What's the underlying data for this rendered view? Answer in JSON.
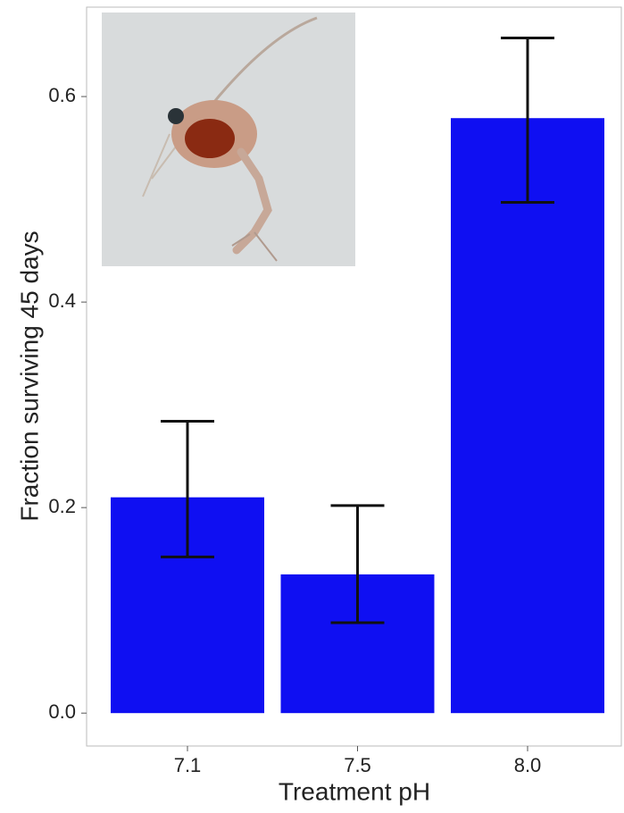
{
  "chart_data": {
    "type": "bar",
    "x_label": "Treatment pH",
    "y_label": "Fraction surviving 45 days",
    "categories": [
      "7.1",
      "7.5",
      "8.0"
    ],
    "values": [
      0.21,
      0.135,
      0.579
    ],
    "lower": [
      0.152,
      0.088,
      0.497
    ],
    "upper": [
      0.284,
      0.202,
      0.657
    ],
    "color": "#0f0ff2",
    "ylim": [
      -0.032,
      0.687
    ],
    "yticks": [
      {
        "value": 0,
        "label": "0.0"
      },
      0.2,
      0.4,
      0.6
    ],
    "grid": false
  }
}
